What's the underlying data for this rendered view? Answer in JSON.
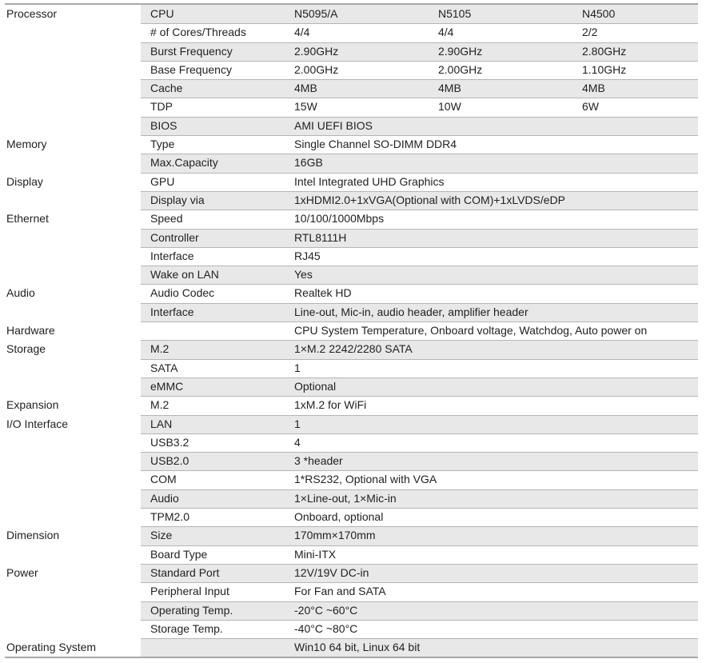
{
  "rows": [
    {
      "category": "Processor",
      "label": "CPU",
      "values": [
        "N5095/A",
        "N5105",
        "N4500"
      ]
    },
    {
      "category": "",
      "label": "# of Cores/Threads",
      "values": [
        "4/4",
        "4/4",
        "2/2"
      ]
    },
    {
      "category": "",
      "label": "Burst Frequency",
      "values": [
        "2.90GHz",
        "2.90GHz",
        "2.80GHz"
      ]
    },
    {
      "category": "",
      "label": "Base Frequency",
      "values": [
        "2.00GHz",
        "2.00GHz",
        "1.10GHz"
      ]
    },
    {
      "category": "",
      "label": "Cache",
      "values": [
        "4MB",
        "4MB",
        "4MB"
      ]
    },
    {
      "category": "",
      "label": "TDP",
      "values": [
        "15W",
        "10W",
        "6W"
      ]
    },
    {
      "category": "",
      "label": "BIOS",
      "values": [
        "AMI UEFI BIOS"
      ]
    },
    {
      "category": "Memory",
      "label": "Type",
      "values": [
        "Single Channel SO-DIMM DDR4"
      ]
    },
    {
      "category": "",
      "label": "Max.Capacity",
      "values": [
        "16GB"
      ]
    },
    {
      "category": "Display",
      "label": "GPU",
      "values": [
        "Intel Integrated UHD Graphics"
      ]
    },
    {
      "category": "",
      "label": "Display via",
      "values": [
        "1xHDMI2.0+1xVGA(Optional with COM)+1xLVDS/eDP"
      ]
    },
    {
      "category": "Ethernet",
      "label": "Speed",
      "values": [
        "10/100/1000Mbps"
      ]
    },
    {
      "category": "",
      "label": "Controller",
      "values": [
        "RTL8111H"
      ]
    },
    {
      "category": "",
      "label": "Interface",
      "values": [
        "RJ45"
      ]
    },
    {
      "category": "",
      "label": "Wake on LAN",
      "values": [
        "Yes"
      ]
    },
    {
      "category": "Audio",
      "label": "Audio Codec",
      "values": [
        "Realtek HD"
      ]
    },
    {
      "category": "",
      "label": "Interface",
      "values": [
        "Line-out, Mic-in, audio header, amplifier header"
      ]
    },
    {
      "category": "Hardware",
      "label": "",
      "values": [
        "CPU System Temperature, Onboard voltage, Watchdog, Auto power on"
      ]
    },
    {
      "category": "Storage",
      "label": "M.2",
      "values": [
        "1×M.2 2242/2280 SATA"
      ]
    },
    {
      "category": "",
      "label": "SATA",
      "values": [
        "1"
      ]
    },
    {
      "category": "",
      "label": "eMMC",
      "values": [
        "Optional"
      ]
    },
    {
      "category": "Expansion",
      "label": "M.2",
      "values": [
        "1xM.2 for WiFi"
      ]
    },
    {
      "category": "I/O Interface",
      "label": "LAN",
      "values": [
        "1"
      ]
    },
    {
      "category": "",
      "label": "USB3.2",
      "values": [
        "4"
      ]
    },
    {
      "category": "",
      "label": "USB2.0",
      "values": [
        "3 *header"
      ]
    },
    {
      "category": "",
      "label": "COM",
      "values": [
        "1*RS232, Optional with VGA"
      ]
    },
    {
      "category": "",
      "label": "Audio",
      "values": [
        "1×Line-out, 1×Mic-in"
      ]
    },
    {
      "category": "",
      "label": "TPM2.0",
      "values": [
        "Onboard, optional"
      ]
    },
    {
      "category": "Dimension",
      "label": "Size",
      "values": [
        "170mm×170mm"
      ]
    },
    {
      "category": "",
      "label": "Board Type",
      "values": [
        "Mini-ITX"
      ]
    },
    {
      "category": "Power",
      "label": "Standard Port",
      "values": [
        "12V/19V DC-in"
      ]
    },
    {
      "category": "",
      "label": "Peripheral Input",
      "values": [
        "For Fan and SATA"
      ]
    },
    {
      "category": "",
      "label": "Operating Temp.",
      "values": [
        "-20°C ~60°C"
      ]
    },
    {
      "category": "",
      "label": "Storage Temp.",
      "values": [
        "-40°C ~80°C"
      ]
    },
    {
      "category": "Operating System",
      "label": "",
      "values": [
        "Win10 64 bit, Linux 64 bit"
      ]
    }
  ],
  "colors": {
    "shade": "#e8e8e8",
    "rule": "#a8a8a8",
    "text": "#222222"
  }
}
